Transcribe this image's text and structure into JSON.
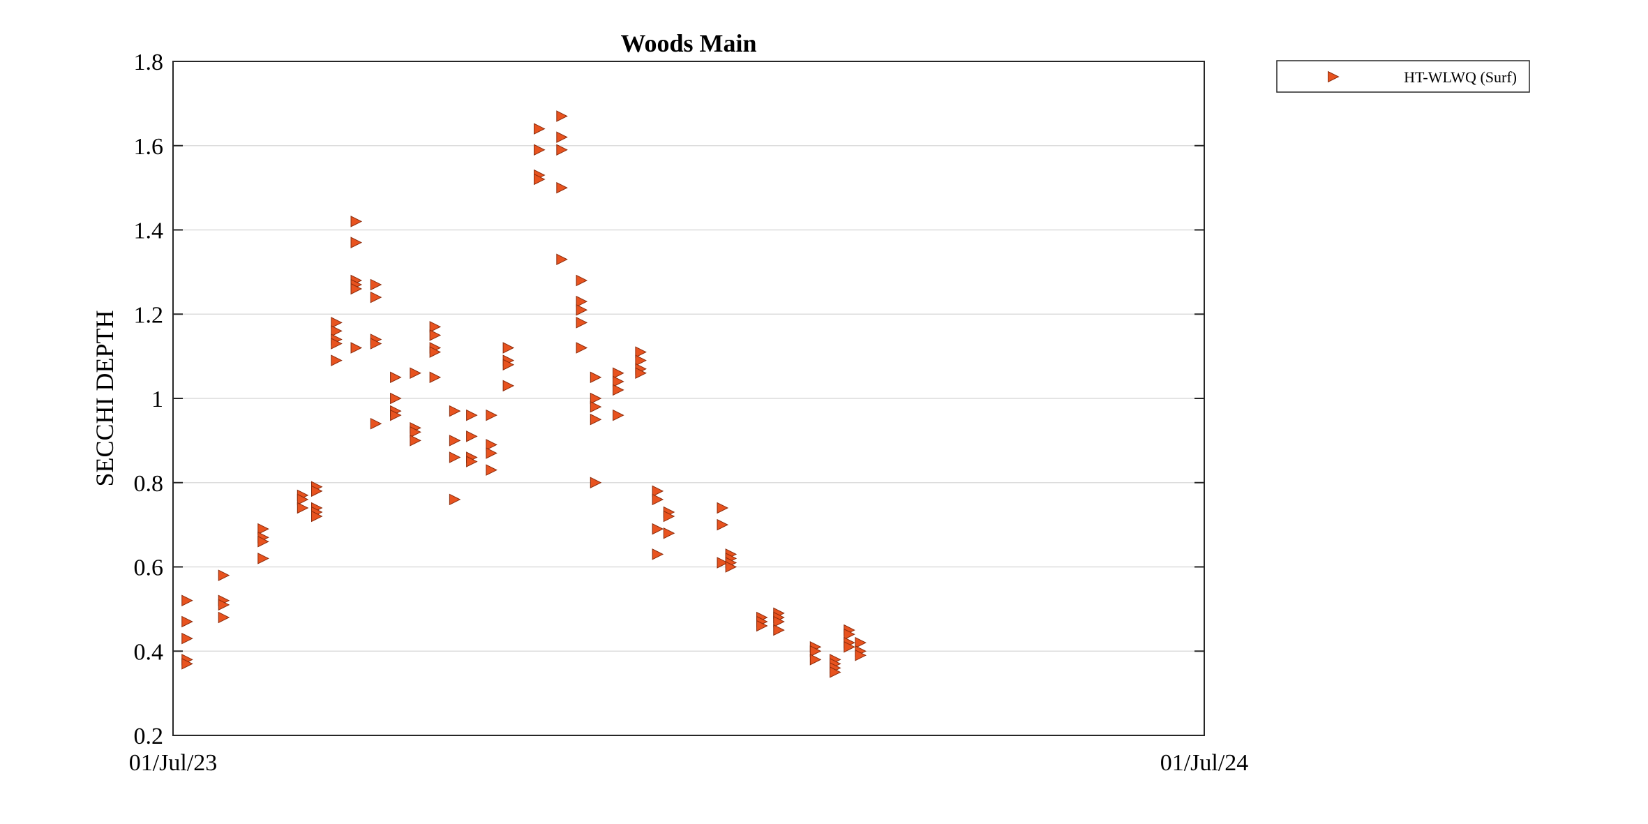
{
  "chart_data": {
    "type": "scatter",
    "title": "Woods Main",
    "xlabel": "",
    "ylabel": "SECCHI DEPTH",
    "x_range": [
      "2023-07-01",
      "2024-07-01"
    ],
    "x_ticks": [
      "01/Jul/23",
      "01/Jul/24"
    ],
    "ylim": [
      0.2,
      1.8
    ],
    "y_ticks": [
      "0.2",
      "0.4",
      "0.6",
      "0.8",
      "1",
      "1.2",
      "1.4",
      "1.6",
      "1.8"
    ],
    "grid": "y",
    "legend_position": "outside-top-right",
    "marker": "triangle-right",
    "marker_color": "#e8531f",
    "marker_edge": "#8a2a0a",
    "series": [
      {
        "name": "HT-WLWQ (Surf)",
        "points": [
          {
            "x": "2023-07-06",
            "y": 0.52
          },
          {
            "x": "2023-07-06",
            "y": 0.47
          },
          {
            "x": "2023-07-06",
            "y": 0.43
          },
          {
            "x": "2023-07-06",
            "y": 0.38
          },
          {
            "x": "2023-07-06",
            "y": 0.37
          },
          {
            "x": "2023-07-19",
            "y": 0.58
          },
          {
            "x": "2023-07-19",
            "y": 0.52
          },
          {
            "x": "2023-07-19",
            "y": 0.51
          },
          {
            "x": "2023-07-19",
            "y": 0.48
          },
          {
            "x": "2023-08-02",
            "y": 0.69
          },
          {
            "x": "2023-08-02",
            "y": 0.67
          },
          {
            "x": "2023-08-02",
            "y": 0.66
          },
          {
            "x": "2023-08-02",
            "y": 0.62
          },
          {
            "x": "2023-08-16",
            "y": 0.77
          },
          {
            "x": "2023-08-16",
            "y": 0.76
          },
          {
            "x": "2023-08-16",
            "y": 0.74
          },
          {
            "x": "2023-08-21",
            "y": 0.79
          },
          {
            "x": "2023-08-21",
            "y": 0.78
          },
          {
            "x": "2023-08-21",
            "y": 0.74
          },
          {
            "x": "2023-08-21",
            "y": 0.73
          },
          {
            "x": "2023-08-21",
            "y": 0.72
          },
          {
            "x": "2023-08-28",
            "y": 1.18
          },
          {
            "x": "2023-08-28",
            "y": 1.16
          },
          {
            "x": "2023-08-28",
            "y": 1.14
          },
          {
            "x": "2023-08-28",
            "y": 1.13
          },
          {
            "x": "2023-08-28",
            "y": 1.09
          },
          {
            "x": "2023-09-04",
            "y": 1.42
          },
          {
            "x": "2023-09-04",
            "y": 1.37
          },
          {
            "x": "2023-09-04",
            "y": 1.28
          },
          {
            "x": "2023-09-04",
            "y": 1.27
          },
          {
            "x": "2023-09-04",
            "y": 1.26
          },
          {
            "x": "2023-09-04",
            "y": 1.12
          },
          {
            "x": "2023-09-11",
            "y": 1.27
          },
          {
            "x": "2023-09-11",
            "y": 1.24
          },
          {
            "x": "2023-09-11",
            "y": 1.14
          },
          {
            "x": "2023-09-11",
            "y": 1.13
          },
          {
            "x": "2023-09-11",
            "y": 0.94
          },
          {
            "x": "2023-09-18",
            "y": 1.05
          },
          {
            "x": "2023-09-18",
            "y": 1.0
          },
          {
            "x": "2023-09-18",
            "y": 0.97
          },
          {
            "x": "2023-09-18",
            "y": 0.96
          },
          {
            "x": "2023-09-25",
            "y": 1.06
          },
          {
            "x": "2023-09-25",
            "y": 0.93
          },
          {
            "x": "2023-09-25",
            "y": 0.92
          },
          {
            "x": "2023-09-25",
            "y": 0.9
          },
          {
            "x": "2023-10-02",
            "y": 1.17
          },
          {
            "x": "2023-10-02",
            "y": 1.15
          },
          {
            "x": "2023-10-02",
            "y": 1.12
          },
          {
            "x": "2023-10-02",
            "y": 1.11
          },
          {
            "x": "2023-10-02",
            "y": 1.05
          },
          {
            "x": "2023-10-09",
            "y": 0.97
          },
          {
            "x": "2023-10-09",
            "y": 0.9
          },
          {
            "x": "2023-10-09",
            "y": 0.86
          },
          {
            "x": "2023-10-09",
            "y": 0.76
          },
          {
            "x": "2023-10-15",
            "y": 0.96
          },
          {
            "x": "2023-10-15",
            "y": 0.91
          },
          {
            "x": "2023-10-15",
            "y": 0.86
          },
          {
            "x": "2023-10-15",
            "y": 0.85
          },
          {
            "x": "2023-10-22",
            "y": 0.96
          },
          {
            "x": "2023-10-22",
            "y": 0.89
          },
          {
            "x": "2023-10-22",
            "y": 0.87
          },
          {
            "x": "2023-10-22",
            "y": 0.83
          },
          {
            "x": "2023-10-28",
            "y": 1.12
          },
          {
            "x": "2023-10-28",
            "y": 1.09
          },
          {
            "x": "2023-10-28",
            "y": 1.08
          },
          {
            "x": "2023-10-28",
            "y": 1.03
          },
          {
            "x": "2023-11-08",
            "y": 1.64
          },
          {
            "x": "2023-11-08",
            "y": 1.59
          },
          {
            "x": "2023-11-08",
            "y": 1.53
          },
          {
            "x": "2023-11-08",
            "y": 1.52
          },
          {
            "x": "2023-11-16",
            "y": 1.67
          },
          {
            "x": "2023-11-16",
            "y": 1.62
          },
          {
            "x": "2023-11-16",
            "y": 1.59
          },
          {
            "x": "2023-11-16",
            "y": 1.5
          },
          {
            "x": "2023-11-16",
            "y": 1.33
          },
          {
            "x": "2023-11-23",
            "y": 1.28
          },
          {
            "x": "2023-11-23",
            "y": 1.23
          },
          {
            "x": "2023-11-23",
            "y": 1.21
          },
          {
            "x": "2023-11-23",
            "y": 1.18
          },
          {
            "x": "2023-11-23",
            "y": 1.12
          },
          {
            "x": "2023-11-28",
            "y": 1.05
          },
          {
            "x": "2023-11-28",
            "y": 1.0
          },
          {
            "x": "2023-11-28",
            "y": 0.98
          },
          {
            "x": "2023-11-28",
            "y": 0.95
          },
          {
            "x": "2023-11-28",
            "y": 0.8
          },
          {
            "x": "2023-12-06",
            "y": 1.06
          },
          {
            "x": "2023-12-06",
            "y": 1.04
          },
          {
            "x": "2023-12-06",
            "y": 1.02
          },
          {
            "x": "2023-12-06",
            "y": 0.96
          },
          {
            "x": "2023-12-14",
            "y": 1.11
          },
          {
            "x": "2023-12-14",
            "y": 1.09
          },
          {
            "x": "2023-12-14",
            "y": 1.07
          },
          {
            "x": "2023-12-14",
            "y": 1.06
          },
          {
            "x": "2023-12-20",
            "y": 0.78
          },
          {
            "x": "2023-12-20",
            "y": 0.76
          },
          {
            "x": "2023-12-20",
            "y": 0.69
          },
          {
            "x": "2023-12-20",
            "y": 0.63
          },
          {
            "x": "2023-12-24",
            "y": 0.73
          },
          {
            "x": "2023-12-24",
            "y": 0.72
          },
          {
            "x": "2023-12-24",
            "y": 0.68
          },
          {
            "x": "2024-01-12",
            "y": 0.74
          },
          {
            "x": "2024-01-12",
            "y": 0.7
          },
          {
            "x": "2024-01-12",
            "y": 0.61
          },
          {
            "x": "2024-01-15",
            "y": 0.63
          },
          {
            "x": "2024-01-15",
            "y": 0.62
          },
          {
            "x": "2024-01-15",
            "y": 0.61
          },
          {
            "x": "2024-01-15",
            "y": 0.6
          },
          {
            "x": "2024-01-26",
            "y": 0.48
          },
          {
            "x": "2024-01-26",
            "y": 0.47
          },
          {
            "x": "2024-01-26",
            "y": 0.46
          },
          {
            "x": "2024-02-01",
            "y": 0.49
          },
          {
            "x": "2024-02-01",
            "y": 0.48
          },
          {
            "x": "2024-02-01",
            "y": 0.47
          },
          {
            "x": "2024-02-01",
            "y": 0.45
          },
          {
            "x": "2024-02-14",
            "y": 0.41
          },
          {
            "x": "2024-02-14",
            "y": 0.4
          },
          {
            "x": "2024-02-14",
            "y": 0.38
          },
          {
            "x": "2024-02-21",
            "y": 0.38
          },
          {
            "x": "2024-02-21",
            "y": 0.37
          },
          {
            "x": "2024-02-21",
            "y": 0.36
          },
          {
            "x": "2024-02-21",
            "y": 0.35
          },
          {
            "x": "2024-02-26",
            "y": 0.45
          },
          {
            "x": "2024-02-26",
            "y": 0.44
          },
          {
            "x": "2024-02-26",
            "y": 0.42
          },
          {
            "x": "2024-02-26",
            "y": 0.41
          },
          {
            "x": "2024-03-01",
            "y": 0.42
          },
          {
            "x": "2024-03-01",
            "y": 0.4
          },
          {
            "x": "2024-03-01",
            "y": 0.39
          }
        ]
      }
    ]
  }
}
